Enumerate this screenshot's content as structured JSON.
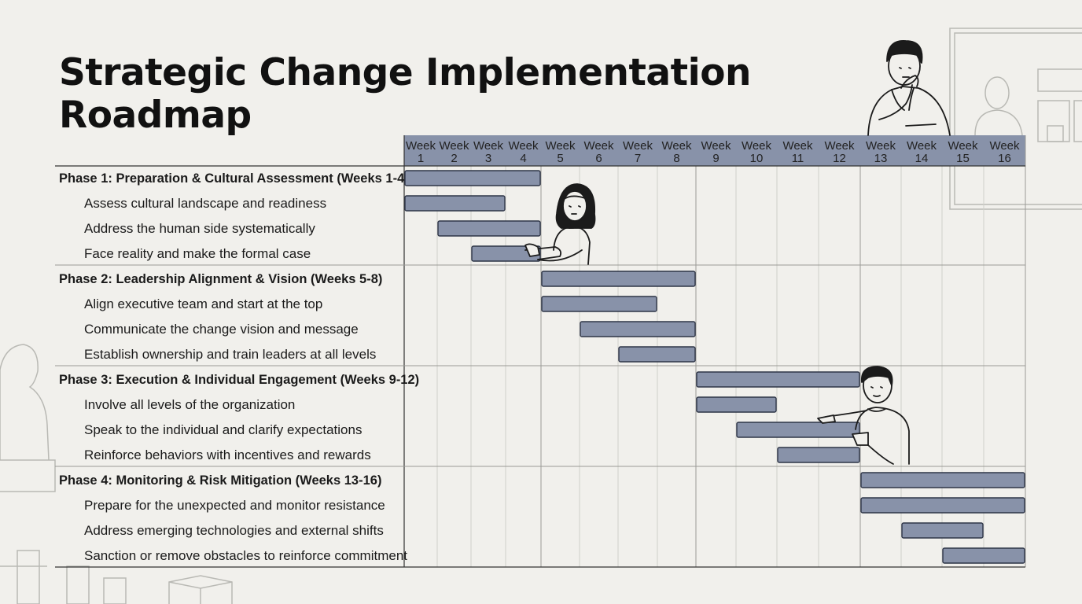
{
  "title_line1": "Strategic Change Implementation",
  "title_line2": "Roadmap",
  "colors": {
    "bar_fill": "#8892a9",
    "bar_stroke": "#2e3547",
    "header_fill": "#8892a9",
    "background": "#f1f0ec"
  },
  "chart_data": {
    "type": "gantt",
    "weeks": [
      {
        "top": "Week",
        "num": "1"
      },
      {
        "top": "Week",
        "num": "2"
      },
      {
        "top": "Week",
        "num": "3"
      },
      {
        "top": "Week",
        "num": "4"
      },
      {
        "top": "Week",
        "num": "5"
      },
      {
        "top": "Week",
        "num": "6"
      },
      {
        "top": "Week",
        "num": "7"
      },
      {
        "top": "Week",
        "num": "8"
      },
      {
        "top": "Week",
        "num": "9"
      },
      {
        "top": "Week",
        "num": "10"
      },
      {
        "top": "Week",
        "num": "11"
      },
      {
        "top": "Week",
        "num": "12"
      },
      {
        "top": "Week",
        "num": "13"
      },
      {
        "top": "Week",
        "num": "14"
      },
      {
        "top": "Week",
        "num": "15"
      },
      {
        "top": "Week",
        "num": "16"
      }
    ],
    "tasks": [
      {
        "label": "Phase 1: Preparation & Cultural Assessment (Weeks 1-4)",
        "phase": true,
        "start": 1,
        "end": 4
      },
      {
        "label": "Assess cultural landscape and readiness",
        "phase": false,
        "start": 1,
        "end": 3
      },
      {
        "label": "Address the human side systematically",
        "phase": false,
        "start": 2,
        "end": 4
      },
      {
        "label": "Face reality and make the formal case",
        "phase": false,
        "start": 3,
        "end": 4
      },
      {
        "label": "Phase 2: Leadership Alignment & Vision (Weeks 5-8)",
        "phase": true,
        "start": 5,
        "end": 8
      },
      {
        "label": "Align executive team and start at the top",
        "phase": false,
        "start": 5,
        "end": 7
      },
      {
        "label": "Communicate the change vision and message",
        "phase": false,
        "start": 6,
        "end": 8
      },
      {
        "label": "Establish ownership and train leaders at all levels",
        "phase": false,
        "start": 7,
        "end": 8
      },
      {
        "label": "Phase 3: Execution & Individual Engagement (Weeks 9-12)",
        "phase": true,
        "start": 9,
        "end": 12
      },
      {
        "label": "Involve all levels of the organization",
        "phase": false,
        "start": 9,
        "end": 10
      },
      {
        "label": "Speak to the individual and clarify expectations",
        "phase": false,
        "start": 10,
        "end": 12
      },
      {
        "label": "Reinforce behaviors with incentives and rewards",
        "phase": false,
        "start": 11,
        "end": 12
      },
      {
        "label": "Phase 4: Monitoring & Risk Mitigation (Weeks 13-16)",
        "phase": true,
        "start": 13,
        "end": 16
      },
      {
        "label": "Prepare for the unexpected and monitor resistance",
        "phase": false,
        "start": 13,
        "end": 16
      },
      {
        "label": "Address emerging technologies and external shifts",
        "phase": false,
        "start": 14,
        "end": 15
      },
      {
        "label": "Sanction or remove obstacles to reinforce commitment",
        "phase": false,
        "start": 15,
        "end": 16
      }
    ]
  }
}
